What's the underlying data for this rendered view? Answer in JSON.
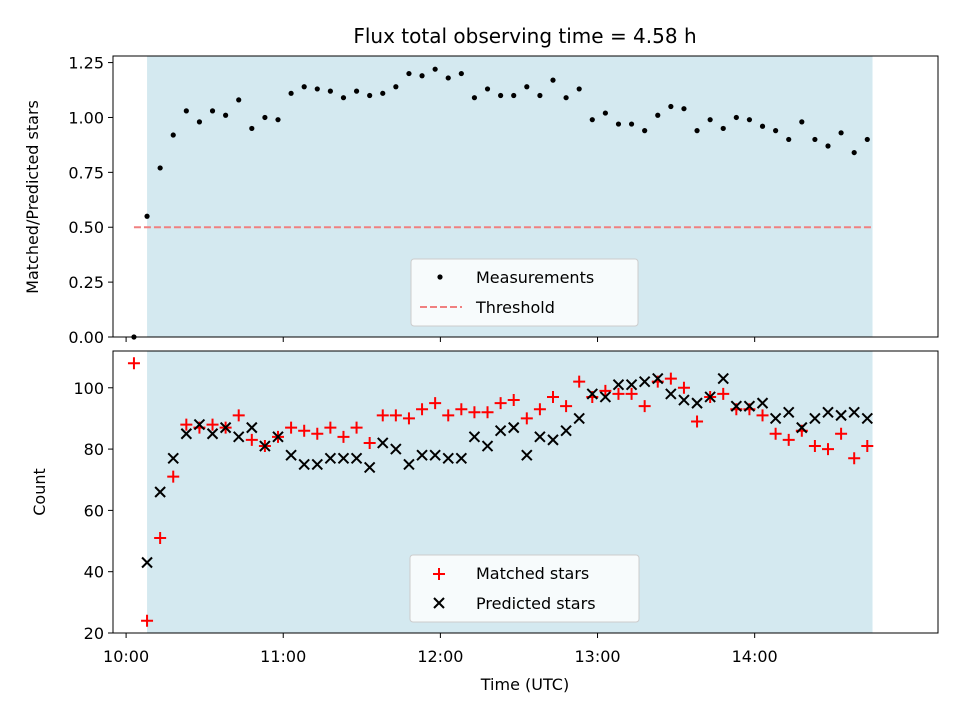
{
  "chart_data": [
    {
      "type": "scatter",
      "title": "Flux total observing time = 4.58 h",
      "ylabel": "Matched/Predicted stars",
      "xlabel": "",
      "xlim": [
        "09:55",
        "15:10"
      ],
      "ylim": [
        0,
        1.28
      ],
      "yticks": [
        "0.00",
        "0.25",
        "0.50",
        "0.75",
        "1.00",
        "1.25"
      ],
      "shaded_span": [
        "10:08",
        "14:45"
      ],
      "threshold": 0.5,
      "legend": {
        "placement": "lower-center",
        "entries": [
          "Measurements",
          "Threshold"
        ]
      },
      "series": [
        {
          "name": "Measurements",
          "x": [
            "10:03",
            "10:08",
            "10:13",
            "10:18",
            "10:23",
            "10:28",
            "10:33",
            "10:38",
            "10:43",
            "10:48",
            "10:53",
            "10:58",
            "11:03",
            "11:08",
            "11:13",
            "11:18",
            "11:23",
            "11:28",
            "11:33",
            "11:38",
            "11:43",
            "11:48",
            "11:53",
            "11:58",
            "12:03",
            "12:08",
            "12:13",
            "12:18",
            "12:23",
            "12:28",
            "12:33",
            "12:38",
            "12:43",
            "12:48",
            "12:53",
            "12:58",
            "13:03",
            "13:08",
            "13:13",
            "13:18",
            "13:23",
            "13:28",
            "13:33",
            "13:38",
            "13:43",
            "13:48",
            "13:53",
            "13:58",
            "14:03",
            "14:08",
            "14:13",
            "14:18",
            "14:23",
            "14:28",
            "14:33",
            "14:38",
            "14:43"
          ],
          "y": [
            0.0,
            0.55,
            0.77,
            0.92,
            1.03,
            0.98,
            1.03,
            1.01,
            1.08,
            0.95,
            1.0,
            0.99,
            1.11,
            1.14,
            1.13,
            1.12,
            1.09,
            1.12,
            1.1,
            1.11,
            1.14,
            1.2,
            1.19,
            1.22,
            1.18,
            1.2,
            1.09,
            1.13,
            1.1,
            1.1,
            1.14,
            1.1,
            1.17,
            1.09,
            1.13,
            0.99,
            1.02,
            0.97,
            0.97,
            0.94,
            1.01,
            1.05,
            1.04,
            0.94,
            0.99,
            0.95,
            1.0,
            0.99,
            0.96,
            0.94,
            0.9,
            0.98,
            0.9,
            0.87,
            0.93,
            0.84,
            0.9
          ]
        },
        {
          "name": "Threshold",
          "x": [
            "10:03",
            "14:45"
          ],
          "y": [
            0.5,
            0.5
          ]
        }
      ]
    },
    {
      "type": "scatter",
      "title": "",
      "ylabel": "Count",
      "xlabel": "Time (UTC)",
      "xlim": [
        "09:55",
        "15:10"
      ],
      "ylim": [
        20,
        112
      ],
      "yticks": [
        "20",
        "40",
        "60",
        "80",
        "100"
      ],
      "xticks": [
        "10:00",
        "11:00",
        "12:00",
        "13:00",
        "14:00"
      ],
      "shaded_span": [
        "10:08",
        "14:45"
      ],
      "legend": {
        "placement": "lower-center",
        "entries": [
          "Matched stars",
          "Predicted stars"
        ]
      },
      "series": [
        {
          "name": "Matched stars",
          "x": [
            "10:03",
            "10:08",
            "10:13",
            "10:18",
            "10:23",
            "10:28",
            "10:33",
            "10:38",
            "10:43",
            "10:48",
            "10:53",
            "10:58",
            "11:03",
            "11:08",
            "11:13",
            "11:18",
            "11:23",
            "11:28",
            "11:33",
            "11:38",
            "11:43",
            "11:48",
            "11:53",
            "11:58",
            "12:03",
            "12:08",
            "12:13",
            "12:18",
            "12:23",
            "12:28",
            "12:33",
            "12:38",
            "12:43",
            "12:48",
            "12:53",
            "12:58",
            "13:03",
            "13:08",
            "13:13",
            "13:18",
            "13:23",
            "13:28",
            "13:33",
            "13:38",
            "13:43",
            "13:48",
            "13:53",
            "13:58",
            "14:03",
            "14:08",
            "14:13",
            "14:18",
            "14:23",
            "14:28",
            "14:33",
            "14:38",
            "14:43"
          ],
          "y": [
            108,
            24,
            51,
            71,
            88,
            87,
            88,
            87,
            91,
            83,
            81,
            84,
            87,
            86,
            85,
            87,
            84,
            87,
            82,
            91,
            91,
            90,
            93,
            95,
            91,
            93,
            92,
            92,
            95,
            96,
            90,
            93,
            97,
            94,
            102,
            97,
            99,
            98,
            98,
            94,
            102,
            103,
            100,
            89,
            97,
            98,
            93,
            93,
            91,
            85,
            83,
            86,
            81,
            80,
            85,
            77,
            81
          ]
        },
        {
          "name": "Predicted stars",
          "x": [
            "10:08",
            "10:13",
            "10:18",
            "10:23",
            "10:28",
            "10:33",
            "10:38",
            "10:43",
            "10:48",
            "10:53",
            "10:58",
            "11:03",
            "11:08",
            "11:13",
            "11:18",
            "11:23",
            "11:28",
            "11:33",
            "11:38",
            "11:43",
            "11:48",
            "11:53",
            "11:58",
            "12:03",
            "12:08",
            "12:13",
            "12:18",
            "12:23",
            "12:28",
            "12:33",
            "12:38",
            "12:43",
            "12:48",
            "12:53",
            "12:58",
            "13:03",
            "13:08",
            "13:13",
            "13:18",
            "13:23",
            "13:28",
            "13:33",
            "13:38",
            "13:43",
            "13:48",
            "13:53",
            "13:58",
            "14:03",
            "14:08",
            "14:13",
            "14:18",
            "14:23",
            "14:28",
            "14:33",
            "14:38",
            "14:43"
          ],
          "y": [
            43,
            66,
            77,
            85,
            88,
            85,
            87,
            84,
            87,
            81,
            84,
            78,
            75,
            75,
            77,
            77,
            77,
            74,
            82,
            80,
            75,
            78,
            78,
            77,
            77,
            84,
            81,
            86,
            87,
            78,
            84,
            83,
            86,
            90,
            98,
            97,
            101,
            101,
            102,
            103,
            98,
            96,
            95,
            97,
            103,
            94,
            94,
            95,
            90,
            92,
            87,
            90,
            92,
            91,
            92,
            90
          ]
        }
      ]
    }
  ],
  "colors": {
    "shade": "#d4e9f0",
    "threshold": "#f08080",
    "measurements": "#000000",
    "matched": "#ff0000",
    "predicted": "#000000"
  }
}
